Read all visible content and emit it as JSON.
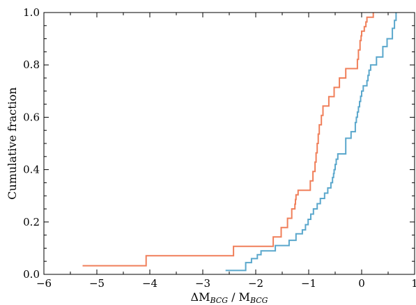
{
  "chart_data": {
    "type": "line",
    "step": "post",
    "xlabel": "ΔM",
    "xlabel_sub": "BCG",
    "xlabel_sep": " / M",
    "xlabel_sub2": "BCG",
    "ylabel": "Cumulative fraction",
    "xlim": [
      -6,
      1
    ],
    "ylim": [
      0.0,
      1.0
    ],
    "x_ticks": [
      -6,
      -5,
      -4,
      -3,
      -2,
      -1,
      0,
      1
    ],
    "x_tick_labels": [
      "−6",
      "−5",
      "−4",
      "−3",
      "−2",
      "−1",
      "0",
      "1"
    ],
    "y_ticks": [
      0.0,
      0.2,
      0.4,
      0.6,
      0.8,
      1.0
    ],
    "y_tick_labels": [
      "0.0",
      "0.2",
      "0.4",
      "0.6",
      "0.8",
      "1.0"
    ],
    "grid": false,
    "series": [
      {
        "color": "#f07f5a",
        "x": [
          -5.27,
          -4.07,
          -2.42,
          -1.67,
          -1.52,
          -1.4,
          -1.32,
          -1.26,
          -1.25,
          -1.24,
          -1.2,
          -0.97,
          -0.92,
          -0.88,
          -0.86,
          -0.84,
          -0.82,
          -0.8,
          -0.76,
          -0.73,
          -0.69,
          -0.62,
          -0.52,
          -0.42,
          -0.3,
          -0.08,
          -0.06,
          -0.03,
          -0.01,
          0.0,
          0.05,
          0.08,
          0.1,
          0.22
        ],
        "y": [
          0.033,
          0.071,
          0.107,
          0.143,
          0.179,
          0.214,
          0.25,
          0.268,
          0.286,
          0.304,
          0.321,
          0.357,
          0.393,
          0.429,
          0.464,
          0.5,
          0.536,
          0.571,
          0.607,
          0.643,
          0.643,
          0.679,
          0.714,
          0.75,
          0.786,
          0.821,
          0.857,
          0.893,
          0.911,
          0.929,
          0.946,
          0.964,
          0.982,
          1.0
        ]
      },
      {
        "color": "#5aa7cc",
        "x": [
          -2.57,
          -2.19,
          -2.08,
          -1.97,
          -1.9,
          -1.63,
          -1.37,
          -1.24,
          -1.12,
          -1.06,
          -1.01,
          -0.96,
          -0.91,
          -0.84,
          -0.78,
          -0.7,
          -0.64,
          -0.58,
          -0.55,
          -0.53,
          -0.52,
          -0.5,
          -0.48,
          -0.45,
          -0.3,
          -0.2,
          -0.12,
          -0.1,
          -0.08,
          -0.06,
          -0.04,
          -0.02,
          0.0,
          0.03,
          0.1,
          0.12,
          0.14,
          0.17,
          0.28,
          0.4,
          0.48,
          0.58,
          0.62,
          0.65
        ],
        "y": [
          0.015,
          0.045,
          0.06,
          0.075,
          0.09,
          0.11,
          0.13,
          0.155,
          0.17,
          0.19,
          0.21,
          0.23,
          0.25,
          0.27,
          0.29,
          0.31,
          0.33,
          0.35,
          0.37,
          0.385,
          0.4,
          0.42,
          0.44,
          0.46,
          0.52,
          0.545,
          0.58,
          0.6,
          0.62,
          0.64,
          0.66,
          0.68,
          0.7,
          0.72,
          0.74,
          0.76,
          0.78,
          0.8,
          0.83,
          0.87,
          0.9,
          0.94,
          0.97,
          1.0
        ]
      }
    ]
  }
}
